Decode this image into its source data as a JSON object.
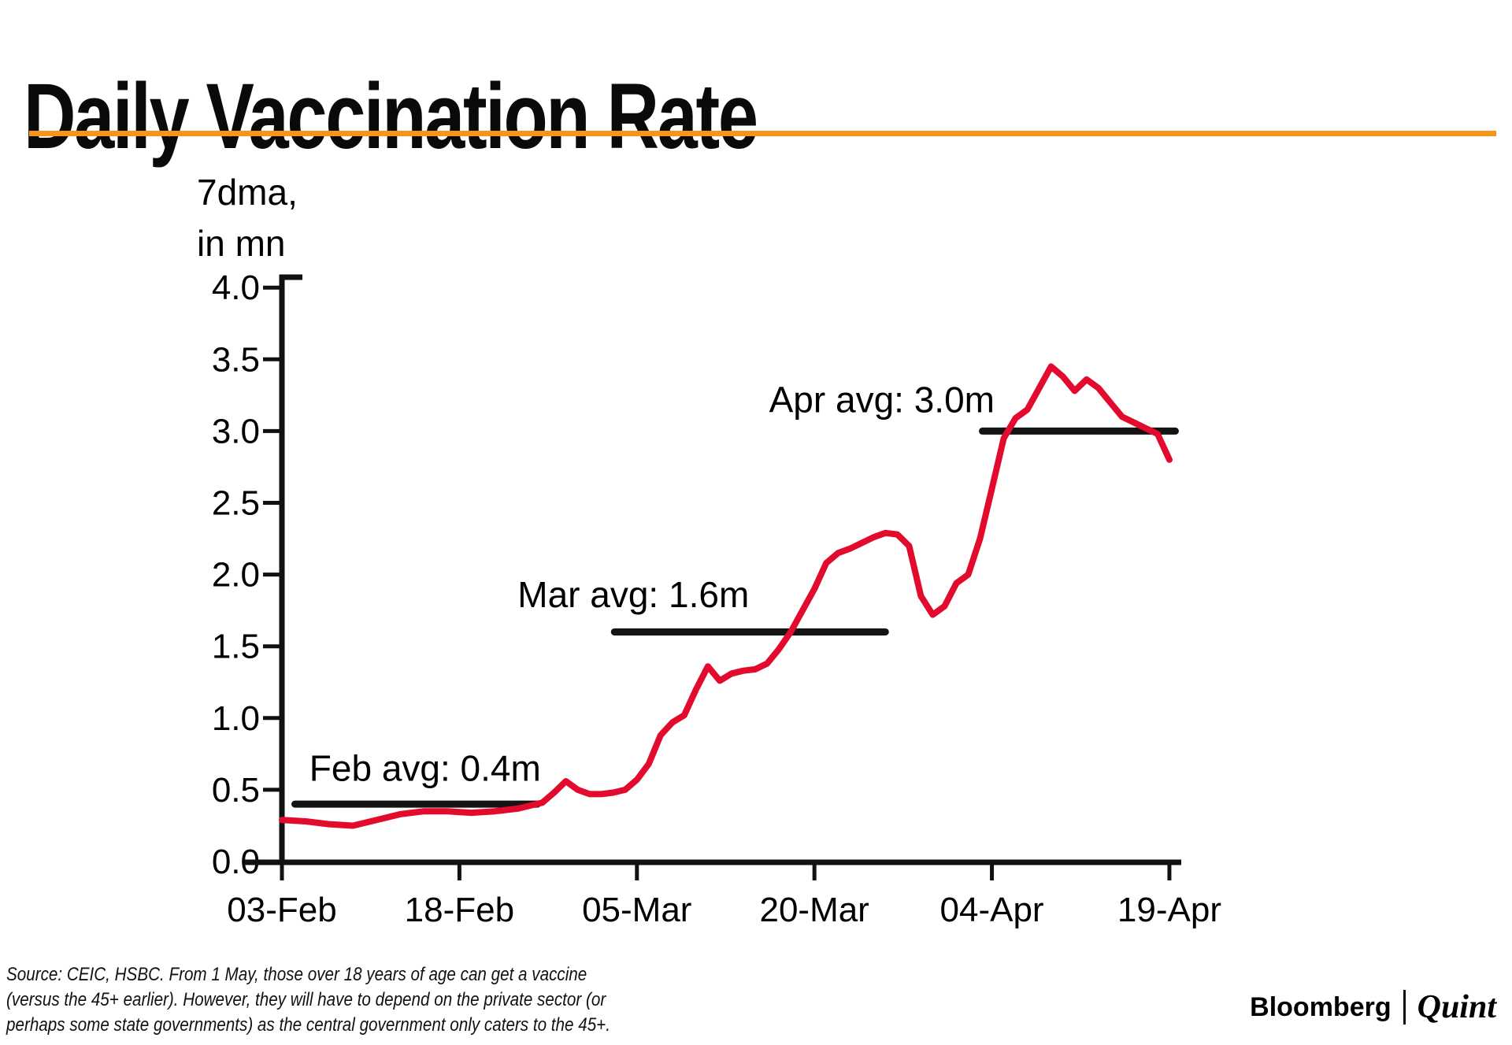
{
  "page": {
    "title": "Daily Vaccination Rate",
    "accent_color": "#F7941D",
    "background": "#FFFFFF"
  },
  "chart_data": {
    "type": "line",
    "title": "Daily Vaccination Rate",
    "y_axis_label_lines": [
      "7dma,",
      "in mn"
    ],
    "ylabel": "7dma, in mn",
    "xlabel": "",
    "ylim": [
      0.0,
      4.0
    ],
    "grid": false,
    "y_ticks": [
      4.0,
      3.5,
      3.0,
      2.5,
      2.0,
      1.5,
      1.0,
      0.5,
      0.0
    ],
    "x_tick_labels": [
      "03-Feb",
      "18-Feb",
      "05-Mar",
      "20-Mar",
      "04-Apr",
      "19-Apr"
    ],
    "x_tick_interval_days": 15,
    "x_range_days": [
      0,
      75
    ],
    "series": [
      {
        "name": "7-day moving average of daily vaccinations (mn)",
        "color": "#E30B2D",
        "points": [
          [
            0,
            0.29
          ],
          [
            2,
            0.28
          ],
          [
            4,
            0.26
          ],
          [
            6,
            0.25
          ],
          [
            8,
            0.29
          ],
          [
            10,
            0.33
          ],
          [
            12,
            0.35
          ],
          [
            14,
            0.35
          ],
          [
            16,
            0.34
          ],
          [
            18,
            0.35
          ],
          [
            20,
            0.37
          ],
          [
            22,
            0.41
          ],
          [
            23,
            0.48
          ],
          [
            24,
            0.56
          ],
          [
            25,
            0.5
          ],
          [
            26,
            0.47
          ],
          [
            27,
            0.47
          ],
          [
            28,
            0.48
          ],
          [
            29,
            0.5
          ],
          [
            30,
            0.57
          ],
          [
            31,
            0.68
          ],
          [
            32,
            0.88
          ],
          [
            33,
            0.97
          ],
          [
            34,
            1.02
          ],
          [
            35,
            1.2
          ],
          [
            36,
            1.36
          ],
          [
            37,
            1.26
          ],
          [
            38,
            1.31
          ],
          [
            39,
            1.33
          ],
          [
            40,
            1.34
          ],
          [
            41,
            1.38
          ],
          [
            42,
            1.48
          ],
          [
            43,
            1.6
          ],
          [
            44,
            1.75
          ],
          [
            45,
            1.9
          ],
          [
            46,
            2.08
          ],
          [
            47,
            2.15
          ],
          [
            48,
            2.18
          ],
          [
            49,
            2.22
          ],
          [
            50,
            2.26
          ],
          [
            51,
            2.29
          ],
          [
            52,
            2.28
          ],
          [
            53,
            2.2
          ],
          [
            54,
            1.85
          ],
          [
            55,
            1.72
          ],
          [
            56,
            1.78
          ],
          [
            57,
            1.94
          ],
          [
            58,
            2.0
          ],
          [
            59,
            2.25
          ],
          [
            60,
            2.6
          ],
          [
            61,
            2.95
          ],
          [
            62,
            3.09
          ],
          [
            63,
            3.15
          ],
          [
            64,
            3.3
          ],
          [
            65,
            3.45
          ],
          [
            66,
            3.38
          ],
          [
            67,
            3.28
          ],
          [
            68,
            3.36
          ],
          [
            69,
            3.3
          ],
          [
            70,
            3.2
          ],
          [
            71,
            3.1
          ],
          [
            72,
            3.06
          ],
          [
            73,
            3.02
          ],
          [
            74,
            2.98
          ],
          [
            75,
            2.8
          ]
        ]
      }
    ],
    "annotations": [
      {
        "label": "Feb avg: 0.4m",
        "line_value": 0.4,
        "line_from_day": 1.1,
        "line_to_day": 21.6,
        "label_day": 12.1,
        "label_value": 0.65
      },
      {
        "label": "Mar avg: 1.6m",
        "line_value": 1.6,
        "line_from_day": 28.1,
        "line_to_day": 51.0,
        "label_day": 29.7,
        "label_value": 1.86
      },
      {
        "label": "Apr avg: 3.0m",
        "line_value": 3.0,
        "line_from_day": 59.2,
        "line_to_day": 75.5,
        "label_day": 50.7,
        "label_value": 3.22
      }
    ]
  },
  "footer": {
    "source_lines": [
      "Source: CEIC, HSBC. From 1 May, those over 18 years of age can get a vaccine",
      "(versus the 45+ earlier). However, they will have to depend on the private sector (or",
      "perhaps some state governments) as the central government only caters to the 45+."
    ],
    "brand": {
      "bloomberg": "Bloomberg",
      "separator": "|",
      "quint": "Quint"
    }
  }
}
